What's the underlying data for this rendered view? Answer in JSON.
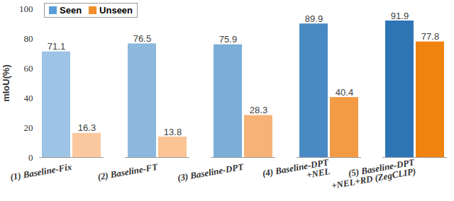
{
  "chart_data": {
    "type": "bar",
    "categories": [
      "(1) Baseline-Fix",
      "(2) Baseline-FT",
      "(3) Baseline-DPT",
      "(4) Baseline-DPT\n+NEL",
      "(5) Baseline-DPT\n+NEL+RD (ZegCLIP)"
    ],
    "series": [
      {
        "name": "Seen",
        "color": "#5b9bd5",
        "colors": [
          "#9dc3e6",
          "#8cb8df",
          "#7aaed8",
          "#4a8ac4",
          "#2e75b6"
        ],
        "values": [
          71.1,
          76.5,
          75.9,
          89.9,
          91.9
        ]
      },
      {
        "name": "Unseen",
        "color": "#f28e2b",
        "colors": [
          "#fbc8a0",
          "#fac494",
          "#f7b377",
          "#f39a45",
          "#f0830f"
        ],
        "values": [
          16.3,
          13.8,
          28.3,
          40.4,
          77.8
        ]
      }
    ],
    "y_label": "mIoU(%)",
    "ylim": [
      0,
      100
    ],
    "yticks": [
      0,
      20,
      40,
      60,
      80,
      100
    ],
    "legend": "top-left",
    "data_labels": true,
    "grid": false
  }
}
